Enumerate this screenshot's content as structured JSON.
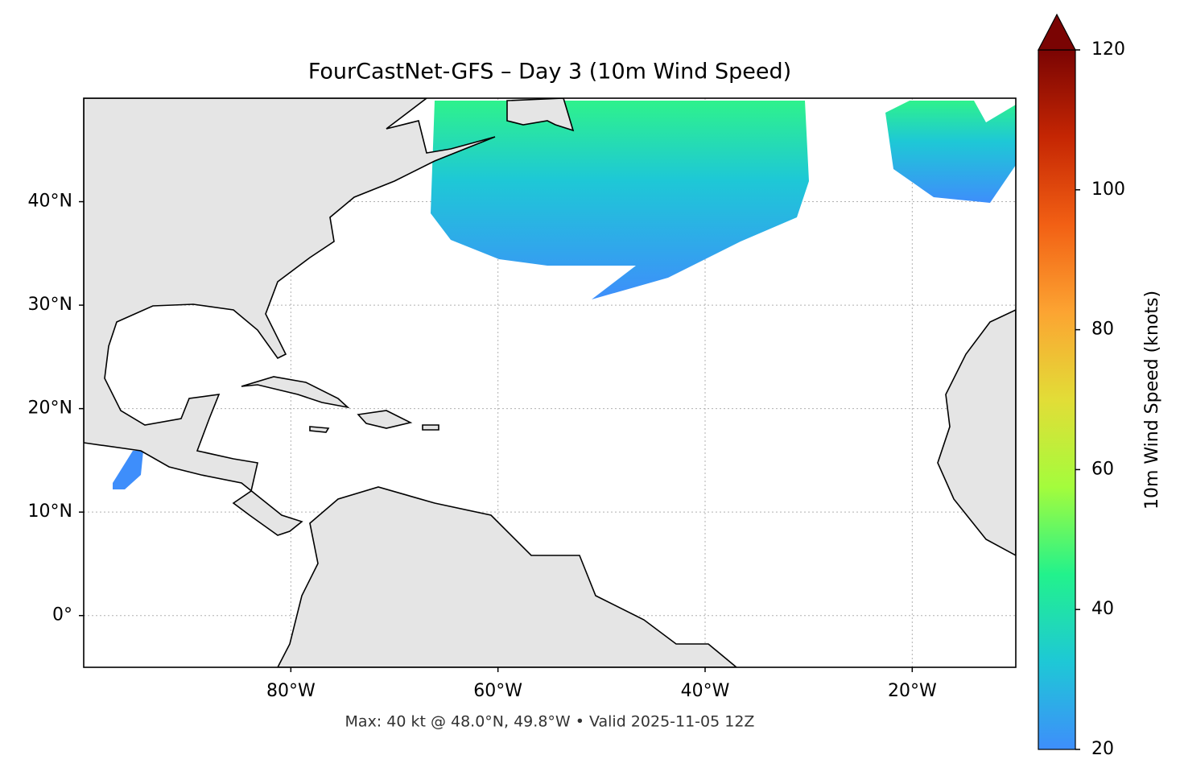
{
  "chart_data": {
    "type": "map",
    "title": "FourCastNet-GFS – Day 3 (10m Wind Speed)",
    "footer": "Max: 40 kt @ 48.0°N, 49.8°W • Valid 2025-11-05 12Z",
    "xlim": [
      -100,
      -10
    ],
    "ylim": [
      -5,
      50
    ],
    "xticks": [
      {
        "value": -80,
        "label": "80°W"
      },
      {
        "value": -60,
        "label": "60°W"
      },
      {
        "value": -40,
        "label": "40°W"
      },
      {
        "value": -20,
        "label": "20°W"
      }
    ],
    "yticks": [
      {
        "value": 0,
        "label": "0°"
      },
      {
        "value": 10,
        "label": "10°N"
      },
      {
        "value": 20,
        "label": "20°N"
      },
      {
        "value": 30,
        "label": "30°N"
      },
      {
        "value": 40,
        "label": "40°N"
      }
    ],
    "grid": true,
    "colorbar": {
      "label": "10m Wind Speed (knots)",
      "lim": [
        20,
        120
      ],
      "ticks": [
        20,
        40,
        60,
        80,
        100,
        120
      ],
      "colors": [
        "#3e8efb",
        "#1ec8d6",
        "#22f28c",
        "#a4fc3c",
        "#e2dd37",
        "#fca432",
        "#f26014",
        "#c52603",
        "#7a0403"
      ]
    }
  }
}
